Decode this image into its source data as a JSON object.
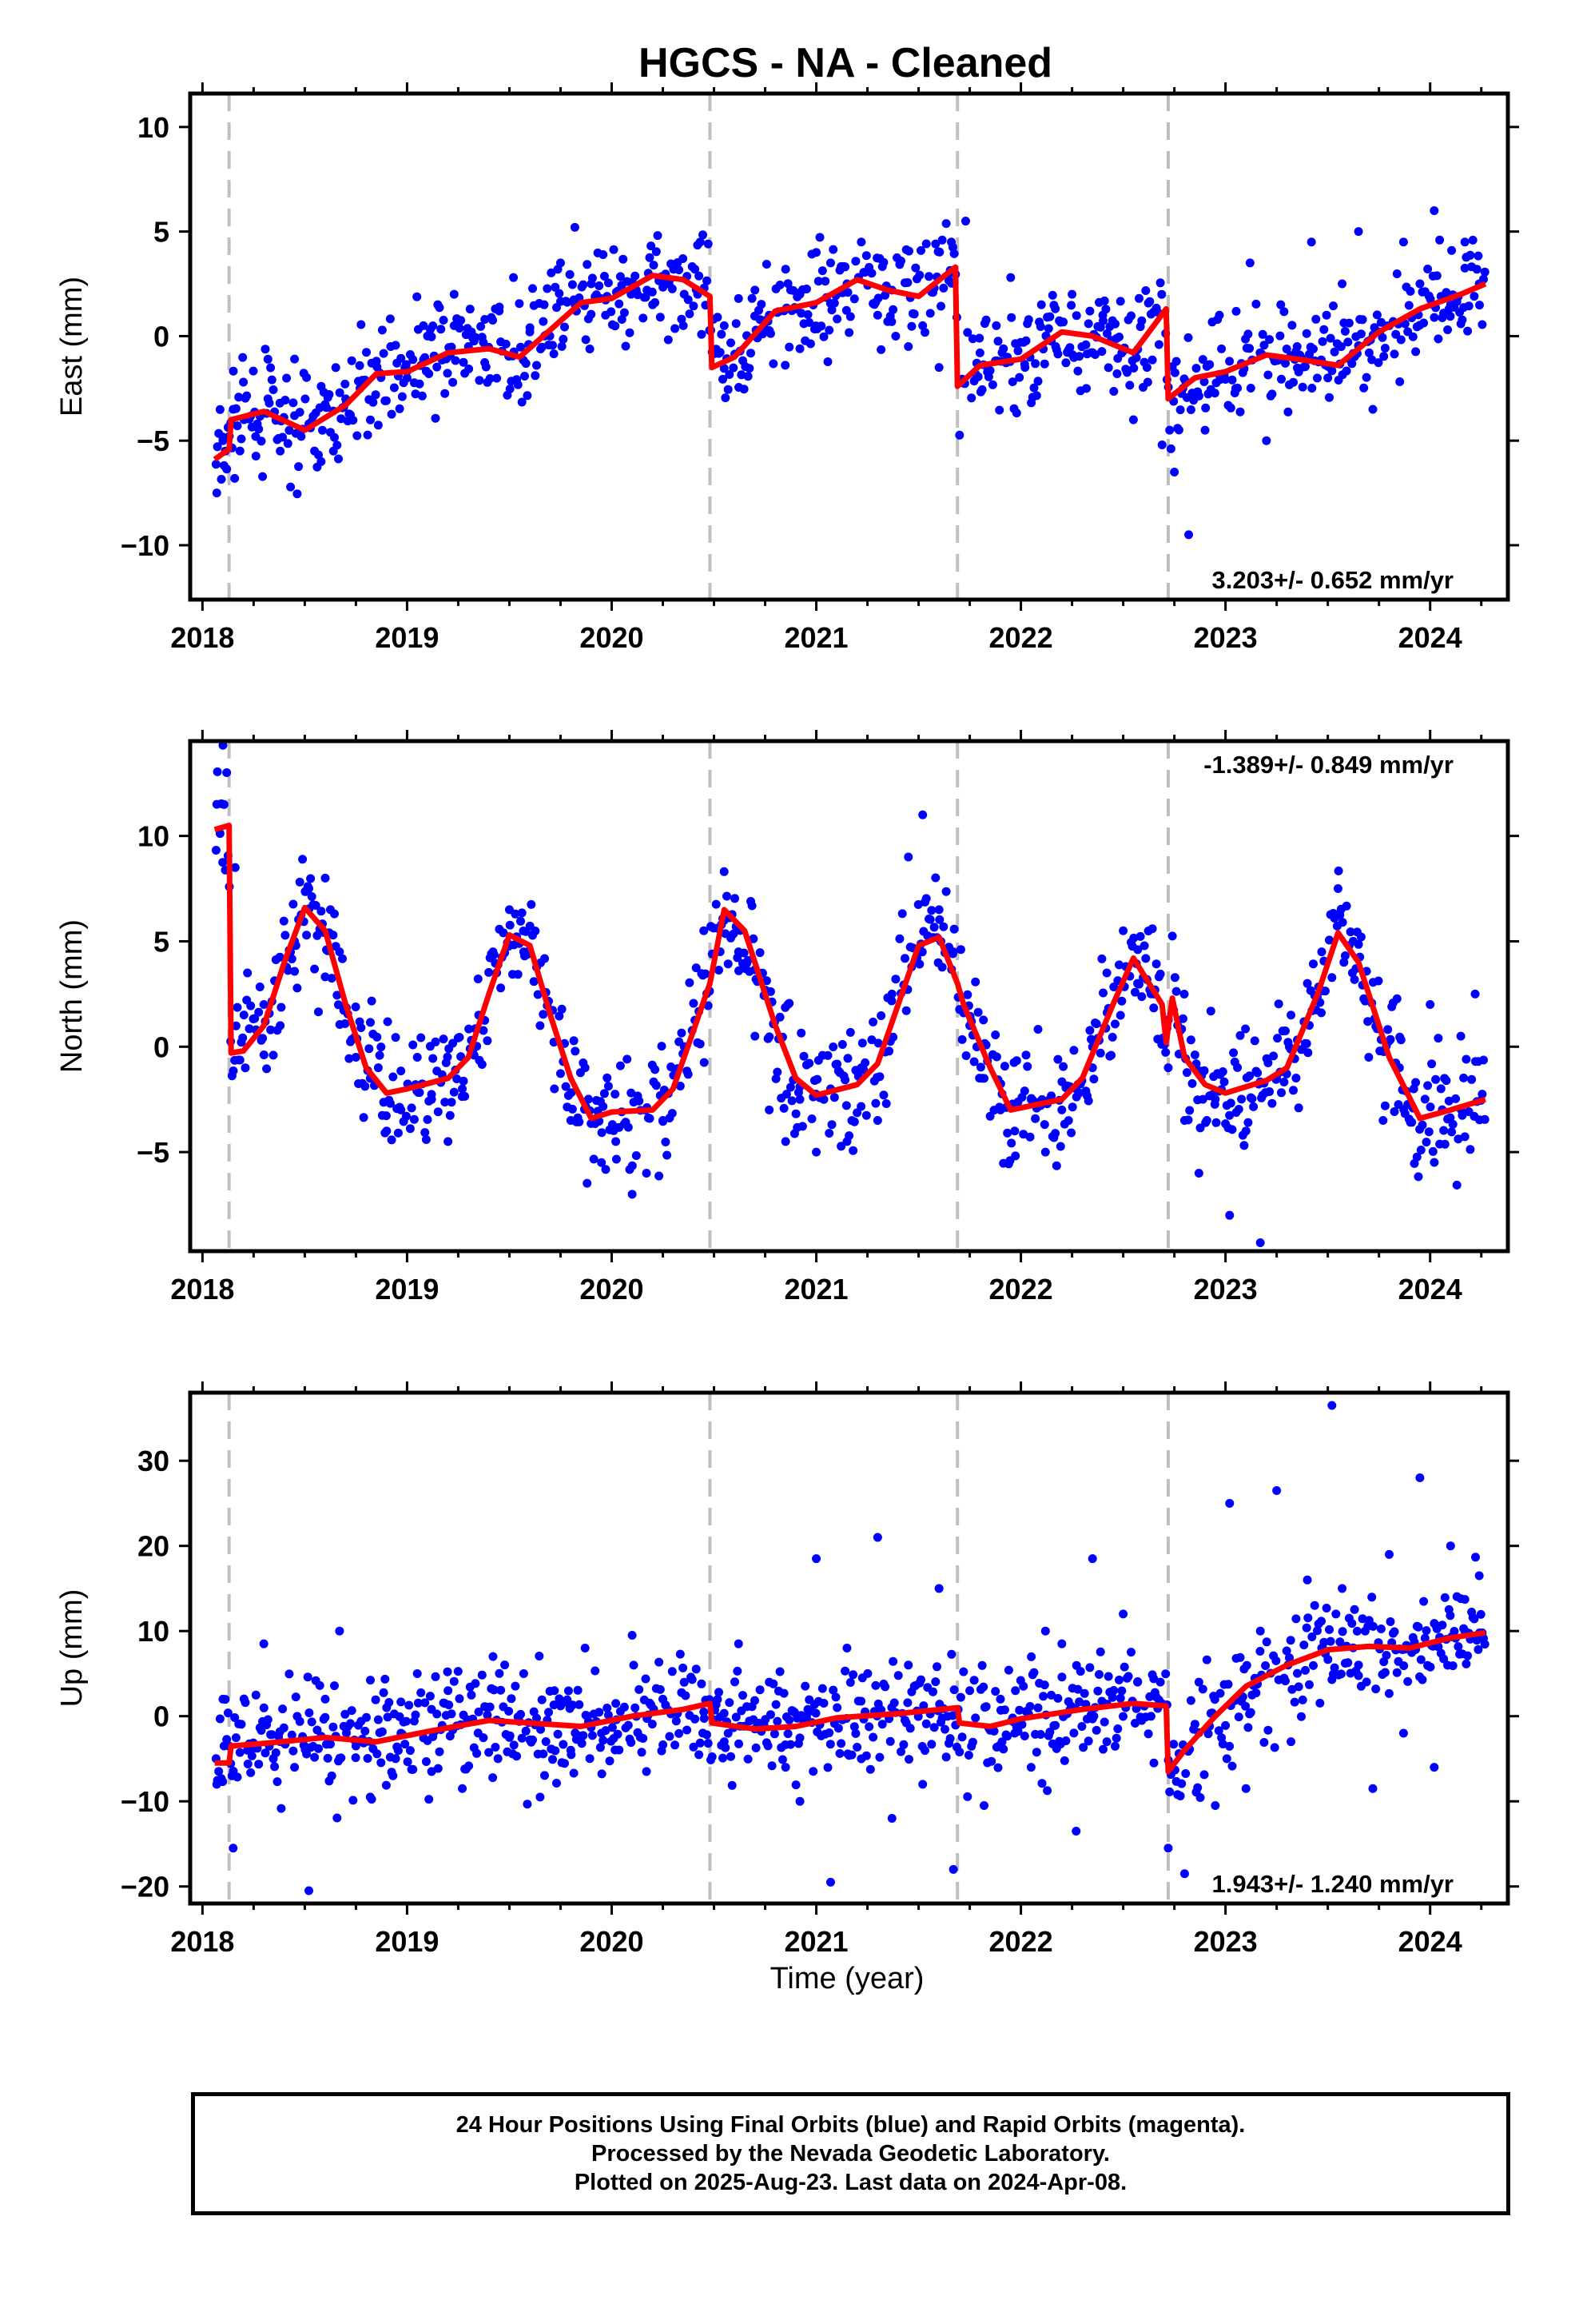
{
  "title": "HGCS  - NA - Cleaned",
  "xlabel": "Time (year)",
  "colors": {
    "points": "#0000ff",
    "fit": "#ff0000",
    "offsets": "#bfbfbf",
    "frame": "#000000"
  },
  "footer": {
    "line1": "24 Hour Positions Using Final Orbits (blue) and Rapid Orbits (magenta).",
    "line2": "Processed by the Nevada Geodetic Laboratory.",
    "line3": "Plotted on 2025-Aug-23. Last data on 2024-Apr-08."
  },
  "chart_data": [
    {
      "type": "scatter",
      "component": "east",
      "ylabel": "East (mm)",
      "velocity_label": "3.203+/- 0.652 mm/yr",
      "xlim": [
        2017.94,
        2024.38
      ],
      "ylim": [
        -12.6,
        11.6
      ],
      "xticks": [
        2018,
        2019,
        2020,
        2021,
        2022,
        2023,
        2024
      ],
      "yticks": [
        -10,
        -5,
        0,
        5,
        10
      ],
      "offset_epochs": [
        2018.13,
        2020.48,
        2021.69,
        2022.72
      ],
      "data_range": [
        2018.06,
        2024.27
      ],
      "fit": {
        "name": "model",
        "x": [
          2018.06,
          2018.13,
          2018.14,
          2018.3,
          2018.5,
          2018.7,
          2018.85,
          2019.0,
          2019.2,
          2019.4,
          2019.55,
          2019.7,
          2019.85,
          2020.0,
          2020.2,
          2020.35,
          2020.48,
          2020.49,
          2020.6,
          2020.8,
          2021.0,
          2021.2,
          2021.35,
          2021.5,
          2021.68,
          2021.69,
          2021.8,
          2022.0,
          2022.2,
          2022.35,
          2022.55,
          2022.71,
          2022.72,
          2022.85,
          2023.0,
          2023.2,
          2023.35,
          2023.55,
          2023.75,
          2023.95,
          2024.15,
          2024.27
        ],
        "y": [
          -5.9,
          -5.4,
          -4.0,
          -3.6,
          -4.5,
          -3.3,
          -1.8,
          -1.7,
          -0.8,
          -0.6,
          -1.0,
          0.3,
          1.6,
          1.8,
          2.9,
          2.7,
          1.9,
          -1.5,
          -1.0,
          1.2,
          1.6,
          2.7,
          2.2,
          1.9,
          3.3,
          -2.4,
          -1.4,
          -1.1,
          0.2,
          0.0,
          -0.8,
          1.3,
          -3.0,
          -2.0,
          -1.7,
          -0.9,
          -1.1,
          -1.4,
          0.2,
          1.3,
          2.0,
          2.5
        ]
      },
      "points": {
        "name": "daily positions",
        "x": [
          2018.07,
          2018.1,
          2018.15,
          2018.2,
          2018.26,
          2018.32,
          2018.38,
          2018.45,
          2018.52,
          2018.58,
          2018.64,
          2018.7,
          2018.77,
          2018.85,
          2018.92,
          2019.0,
          2019.08,
          2019.15,
          2019.23,
          2019.3,
          2019.38,
          2019.45,
          2019.52,
          2019.6,
          2019.67,
          2019.75,
          2019.82,
          2019.9,
          2019.97,
          2020.05,
          2020.12,
          2020.2,
          2020.28,
          2020.35,
          2020.42,
          2020.55,
          2020.62,
          2020.7,
          2020.77,
          2020.85,
          2020.92,
          2021.0,
          2021.07,
          2021.15,
          2021.22,
          2021.3,
          2021.37,
          2021.45,
          2021.52,
          2021.6,
          2021.66,
          2021.73,
          2021.8,
          2021.88,
          2021.95,
          2022.02,
          2022.1,
          2022.17,
          2022.25,
          2022.32,
          2022.4,
          2022.47,
          2022.55,
          2022.62,
          2022.69,
          2022.75,
          2022.82,
          2022.9,
          2022.97,
          2023.05,
          2023.12,
          2023.2,
          2023.27,
          2023.35,
          2023.42,
          2023.5,
          2023.57,
          2023.65,
          2023.72,
          2023.8,
          2023.87,
          2023.95,
          2024.02,
          2024.1,
          2024.17,
          2024.24
        ],
        "y": [
          -7.5,
          -5.0,
          -3.5,
          -2.2,
          -4.8,
          -3.0,
          -5.5,
          -3.8,
          -4.2,
          -6.0,
          -5.5,
          -3.0,
          -2.5,
          -1.2,
          -0.5,
          -2.0,
          0.5,
          1.5,
          2.0,
          -0.5,
          0.8,
          1.2,
          2.8,
          0.2,
          1.5,
          3.5,
          5.2,
          2.5,
          1.0,
          0.8,
          2.2,
          1.5,
          2.5,
          0.5,
          2.0,
          0.5,
          1.8,
          2.2,
          1.0,
          3.2,
          2.0,
          4.0,
          3.5,
          2.5,
          4.5,
          1.0,
          2.2,
          -0.5,
          0.5,
          -1.5,
          4.5,
          5.5,
          -0.8,
          0.5,
          2.8,
          -1.5,
          1.5,
          -0.5,
          2.0,
          -2.5,
          1.0,
          -1.8,
          -4.0,
          -2.2,
          -5.2,
          -6.5,
          -9.5,
          -4.5,
          1.0,
          -2.5,
          3.5,
          -5.0,
          1.5,
          -0.5,
          4.5,
          -2.0,
          2.5,
          5.0,
          -3.5,
          0.5,
          4.5,
          2.5,
          6.0,
          1.5,
          4.5,
          2.5
        ]
      }
    },
    {
      "type": "scatter",
      "component": "north",
      "ylabel": "North (mm)",
      "velocity_label": "-1.389+/- 0.849 mm/yr",
      "xlim": [
        2017.94,
        2024.38
      ],
      "ylim": [
        -9.7,
        14.5
      ],
      "xticks": [
        2018,
        2019,
        2020,
        2021,
        2022,
        2023,
        2024
      ],
      "yticks": [
        -5,
        0,
        5,
        10
      ],
      "offset_epochs": [
        2018.13,
        2020.48,
        2021.69,
        2022.72
      ],
      "data_range": [
        2018.06,
        2024.27
      ],
      "fit": {
        "name": "model",
        "x": [
          2018.06,
          2018.13,
          2018.14,
          2018.2,
          2018.3,
          2018.4,
          2018.5,
          2018.6,
          2018.7,
          2018.8,
          2018.9,
          2019.0,
          2019.2,
          2019.3,
          2019.4,
          2019.5,
          2019.6,
          2019.7,
          2019.8,
          2019.9,
          2020.0,
          2020.2,
          2020.3,
          2020.48,
          2020.55,
          2020.65,
          2020.8,
          2020.9,
          2021.0,
          2021.2,
          2021.3,
          2021.4,
          2021.5,
          2021.6,
          2021.69,
          2021.72,
          2021.85,
          2021.95,
          2022.05,
          2022.2,
          2022.3,
          2022.45,
          2022.55,
          2022.69,
          2022.71,
          2022.74,
          2022.8,
          2022.9,
          2023.0,
          2023.2,
          2023.3,
          2023.45,
          2023.55,
          2023.65,
          2023.8,
          2023.95,
          2024.1,
          2024.27
        ],
        "y": [
          10.3,
          10.5,
          -0.3,
          -0.2,
          1.0,
          4.0,
          6.6,
          5.5,
          2.0,
          -1.0,
          -2.2,
          -2.0,
          -1.5,
          -0.5,
          2.5,
          5.3,
          4.8,
          1.5,
          -1.5,
          -3.4,
          -3.1,
          -3.0,
          -2.0,
          3.0,
          6.5,
          5.5,
          1.0,
          -1.5,
          -2.3,
          -1.8,
          -0.8,
          2.0,
          4.8,
          5.2,
          3.0,
          2.0,
          -1.0,
          -3.0,
          -2.8,
          -2.5,
          -1.5,
          2.0,
          4.2,
          2.0,
          0.2,
          2.3,
          -0.5,
          -1.8,
          -2.2,
          -1.6,
          -1.0,
          2.5,
          5.4,
          4.0,
          -0.5,
          -3.4,
          -3.0,
          -2.5
        ]
      },
      "points": {
        "name": "daily positions",
        "x": [
          2018.07,
          2018.1,
          2018.16,
          2018.22,
          2018.3,
          2018.38,
          2018.45,
          2018.52,
          2018.6,
          2018.67,
          2018.75,
          2018.82,
          2018.9,
          2018.97,
          2019.05,
          2019.12,
          2019.2,
          2019.27,
          2019.35,
          2019.42,
          2019.5,
          2019.57,
          2019.65,
          2019.72,
          2019.8,
          2019.87,
          2019.95,
          2020.02,
          2020.1,
          2020.17,
          2020.25,
          2020.45,
          2020.55,
          2020.62,
          2020.7,
          2020.77,
          2020.85,
          2020.92,
          2021.0,
          2021.07,
          2021.15,
          2021.22,
          2021.3,
          2021.37,
          2021.45,
          2021.52,
          2021.6,
          2021.67,
          2021.75,
          2021.82,
          2021.9,
          2021.97,
          2022.05,
          2022.12,
          2022.2,
          2022.27,
          2022.35,
          2022.42,
          2022.5,
          2022.57,
          2022.65,
          2022.72,
          2022.8,
          2022.87,
          2022.95,
          2023.02,
          2023.1,
          2023.17,
          2023.25,
          2023.32,
          2023.4,
          2023.47,
          2023.55,
          2023.62,
          2023.7,
          2023.77,
          2023.85,
          2023.92,
          2024.0,
          2024.07,
          2024.15,
          2024.22
        ],
        "y": [
          11.5,
          14.3,
          8.5,
          3.5,
          2.0,
          1.0,
          5.0,
          7.5,
          8.0,
          4.5,
          -0.5,
          -1.5,
          -4.0,
          -3.0,
          -0.5,
          -2.5,
          -4.5,
          -2.0,
          1.5,
          4.5,
          6.5,
          4.5,
          1.0,
          -2.0,
          -3.5,
          -1.0,
          -5.5,
          -4.5,
          -7.0,
          -6.0,
          -3.5,
          5.5,
          6.0,
          4.5,
          0.5,
          -3.0,
          -4.5,
          -2.5,
          -5.0,
          -2.0,
          -4.5,
          -1.0,
          -3.5,
          2.5,
          9.0,
          11.0,
          6.5,
          4.5,
          1.0,
          -1.5,
          -3.0,
          -4.0,
          -2.5,
          -5.0,
          -3.0,
          -2.0,
          -1.0,
          3.5,
          5.5,
          3.0,
          2.5,
          -1.0,
          -3.5,
          -6.0,
          -2.5,
          -8.0,
          -4.0,
          -9.3,
          -1.5,
          1.5,
          3.0,
          4.5,
          7.5,
          3.5,
          -0.5,
          -3.5,
          -1.0,
          -2.0,
          2.0,
          -1.5,
          0.5,
          2.5
        ]
      }
    },
    {
      "type": "scatter",
      "component": "up",
      "ylabel": "Up (mm)",
      "velocity_label": "1.943+/- 1.240 mm/yr",
      "xlim": [
        2017.94,
        2024.38
      ],
      "ylim": [
        -22,
        38
      ],
      "xticks": [
        2018,
        2019,
        2020,
        2021,
        2022,
        2023,
        2024
      ],
      "yticks": [
        -20,
        -10,
        0,
        10,
        20,
        30
      ],
      "offset_epochs": [
        2018.13,
        2020.48,
        2021.69,
        2022.72
      ],
      "data_range": [
        2018.06,
        2024.27
      ],
      "fit": {
        "name": "model",
        "x": [
          2018.06,
          2018.13,
          2018.14,
          2018.3,
          2018.6,
          2018.85,
          2019.1,
          2019.4,
          2019.6,
          2019.85,
          2020.1,
          2020.35,
          2020.48,
          2020.49,
          2020.7,
          2020.9,
          2021.1,
          2021.4,
          2021.69,
          2021.7,
          2021.85,
          2022.0,
          2022.3,
          2022.55,
          2022.71,
          2022.72,
          2022.8,
          2022.95,
          2023.1,
          2023.3,
          2023.5,
          2023.7,
          2023.9,
          2024.1,
          2024.27
        ],
        "y": [
          -5.5,
          -5.5,
          -3.5,
          -3.2,
          -2.5,
          -3.0,
          -1.8,
          -0.5,
          -0.8,
          -1.2,
          0.0,
          0.8,
          1.5,
          -0.8,
          -1.5,
          -1.2,
          -0.2,
          0.3,
          1.0,
          -0.8,
          -1.2,
          -0.3,
          0.8,
          1.5,
          1.2,
          -6.5,
          -4.0,
          0.0,
          3.5,
          6.0,
          7.8,
          8.2,
          8.0,
          9.2,
          9.8
        ]
      },
      "points": {
        "name": "daily positions",
        "x": [
          2018.07,
          2018.1,
          2018.15,
          2018.22,
          2018.3,
          2018.38,
          2018.45,
          2018.52,
          2018.6,
          2018.67,
          2018.75,
          2018.82,
          2018.9,
          2018.97,
          2019.05,
          2019.12,
          2019.2,
          2019.27,
          2019.35,
          2019.42,
          2019.5,
          2019.57,
          2019.65,
          2019.72,
          2019.8,
          2019.87,
          2019.95,
          2020.02,
          2020.1,
          2020.17,
          2020.25,
          2020.45,
          2020.55,
          2020.62,
          2020.7,
          2020.77,
          2020.85,
          2020.92,
          2021.0,
          2021.07,
          2021.15,
          2021.22,
          2021.3,
          2021.37,
          2021.45,
          2021.52,
          2021.6,
          2021.67,
          2021.75,
          2021.82,
          2021.9,
          2021.97,
          2022.05,
          2022.12,
          2022.2,
          2022.27,
          2022.35,
          2022.42,
          2022.5,
          2022.57,
          2022.65,
          2022.72,
          2022.8,
          2022.87,
          2022.95,
          2023.02,
          2023.1,
          2023.17,
          2023.25,
          2023.32,
          2023.4,
          2023.47,
          2023.52,
          2023.57,
          2023.65,
          2023.72,
          2023.8,
          2023.87,
          2023.95,
          2024.02,
          2024.1,
          2024.17,
          2024.24
        ],
        "y": [
          -8.0,
          2.0,
          -15.5,
          -4.0,
          8.5,
          -3.0,
          -6.0,
          -20.5,
          2.0,
          10.0,
          -3.5,
          -9.5,
          1.0,
          -2.0,
          5.0,
          -6.5,
          3.0,
          -8.5,
          0.5,
          7.0,
          -2.5,
          5.0,
          -9.5,
          3.0,
          -4.0,
          8.0,
          -2.0,
          1.5,
          9.5,
          -6.5,
          2.0,
          0.5,
          -3.0,
          8.5,
          -1.5,
          4.0,
          -6.0,
          -10.0,
          18.5,
          -19.5,
          8.0,
          -5.0,
          21.0,
          -12.0,
          6.0,
          -8.0,
          15.0,
          -18.0,
          3.0,
          -10.5,
          2.0,
          -2.0,
          -6.0,
          10.0,
          8.5,
          -13.5,
          18.5,
          -3.0,
          12.0,
          4.0,
          -5.5,
          -15.5,
          -18.5,
          4.0,
          -10.5,
          25.0,
          -8.5,
          10.0,
          26.5,
          -3.0,
          16.0,
          8.0,
          36.5,
          15.0,
          6.0,
          -8.5,
          19.0,
          -2.0,
          28.0,
          -6.0,
          20.0,
          10.0,
          16.5
        ]
      }
    }
  ]
}
